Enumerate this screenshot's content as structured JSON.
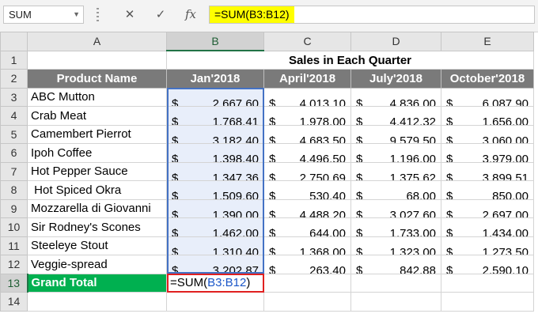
{
  "formula_bar": {
    "name_box": "SUM",
    "cancel_symbol": "✕",
    "enter_symbol": "✓",
    "fx_symbol": "fx",
    "formula": "=SUM(B3:B12)"
  },
  "columns": [
    "A",
    "B",
    "C",
    "D",
    "E"
  ],
  "rows": [
    "1",
    "2",
    "3",
    "4",
    "5",
    "6",
    "7",
    "8",
    "9",
    "10",
    "11",
    "12",
    "13",
    "14"
  ],
  "title": "Sales in Each Quarter",
  "headers": [
    "Product Name",
    "Jan'2018",
    "April'2018",
    "July'2018",
    "October'2018"
  ],
  "currency": "$",
  "data": [
    [
      "ABC Mutton",
      "2,667.60",
      "4,013.10",
      "4,836.00",
      "6,087.90"
    ],
    [
      "Crab Meat",
      "1,768.41",
      "1,978.00",
      "4,412.32",
      "1,656.00"
    ],
    [
      "Camembert Pierrot",
      "3,182.40",
      "4,683.50",
      "9,579.50",
      "3,060.00"
    ],
    [
      "Ipoh Coffee",
      "1,398.40",
      "4,496.50",
      "1,196.00",
      "3,979.00"
    ],
    [
      "Hot Pepper Sauce",
      "1,347.36",
      "2,750.69",
      "1,375.62",
      "3,899.51"
    ],
    [
      " Hot Spiced Okra",
      "1,509.60",
      "530.40",
      "68.00",
      "850.00"
    ],
    [
      "Mozzarella di Giovanni",
      "1,390.00",
      "4,488.20",
      "3,027.60",
      "2,697.00"
    ],
    [
      "Sir Rodney's Scones",
      "1,462.00",
      "644.00",
      "1,733.00",
      "1,434.00"
    ],
    [
      "Steeleye Stout",
      "1,310.40",
      "1,368.00",
      "1,323.00",
      "1,273.50"
    ],
    [
      "Veggie-spread",
      "3,202.87",
      "263.40",
      "842.88",
      "2,590.10"
    ]
  ],
  "grand_total": {
    "label": "Grand Total",
    "formula_prefix": "=SUM(",
    "formula_ref": "B3:B12",
    "formula_suffix": ")"
  },
  "colors": {
    "header_fill": "#7a7a7a",
    "grand_total_fill": "#00b050",
    "formula_highlight": "#ffff00",
    "range_border": "#4472c4",
    "edit_border": "#e02020"
  }
}
